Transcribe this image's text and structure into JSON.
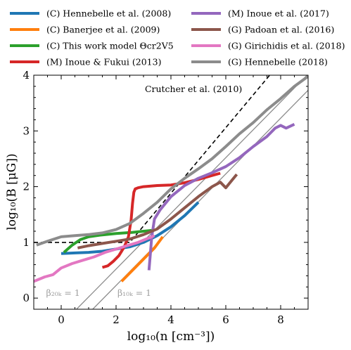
{
  "chart_data": {
    "type": "line",
    "xlabel": "log₁₀(n [cm⁻³])",
    "ylabel": "log₁₀(B [μG])",
    "xlim": [
      -1.0,
      9.0
    ],
    "ylim": [
      -0.2,
      4.0
    ],
    "xticks": [
      "0",
      "2",
      "4",
      "6",
      "8"
    ],
    "yticks": [
      "0",
      "1",
      "2",
      "3",
      "4"
    ],
    "grid": false,
    "legend_position": "top",
    "annotations": [
      {
        "text": "Crutcher et al. (2010)",
        "x": 3.05,
        "y": 3.7,
        "color": "#000000"
      },
      {
        "text": "β₂₀ₖ = 1",
        "x": -0.55,
        "y": 0.04,
        "color": "#a0a0a0"
      },
      {
        "text": "β₁₀ₖ = 1",
        "x": 2.05,
        "y": 0.04,
        "color": "#a0a0a0"
      }
    ],
    "reference_lines": [
      {
        "kind": "crutcher",
        "style": "dashed",
        "color": "#000000",
        "points": [
          [
            -1.0,
            1.0
          ],
          [
            2.5,
            1.0
          ],
          [
            7.6,
            4.0
          ]
        ]
      },
      {
        "kind": "beta20K",
        "style": "solid",
        "color": "#8c8c8c",
        "points": [
          [
            0.56,
            -0.2
          ],
          [
            9.0,
            4.02
          ]
        ]
      },
      {
        "kind": "beta10K",
        "style": "solid",
        "color": "#8c8c8c",
        "points": [
          [
            1.15,
            -0.2
          ],
          [
            9.0,
            3.73
          ]
        ]
      }
    ],
    "series": [
      {
        "name": "(C) Hennebelle et al. (2008)",
        "color": "#1f77b4",
        "x": [
          0.0,
          0.5,
          1.0,
          1.5,
          2.0,
          2.5,
          3.0,
          3.5,
          4.0,
          4.5,
          5.0
        ],
        "y": [
          0.8,
          0.81,
          0.82,
          0.84,
          0.88,
          0.92,
          1.0,
          1.12,
          1.28,
          1.48,
          1.72
        ]
      },
      {
        "name": "(C) Banerjee et al. (2009)",
        "color": "#ff7f0e",
        "x": [
          2.2,
          2.5,
          2.8,
          3.1,
          3.4,
          3.7
        ],
        "y": [
          0.3,
          0.45,
          0.6,
          0.75,
          0.9,
          1.1
        ]
      },
      {
        "name": "(C) This work model Θcr2V5",
        "color": "#2ca02c",
        "x": [
          0.1,
          0.4,
          0.7,
          1.0,
          1.4,
          2.0,
          2.6,
          3.0,
          3.2,
          3.4
        ],
        "y": [
          0.82,
          0.95,
          1.05,
          1.1,
          1.13,
          1.16,
          1.18,
          1.2,
          1.21,
          1.22
        ]
      },
      {
        "name": "(M) Inoue & Fukui (2013)",
        "color": "#d62728",
        "x": [
          1.5,
          1.7,
          1.9,
          2.1,
          2.3,
          2.45,
          2.55,
          2.6,
          2.65,
          2.7,
          2.8,
          3.0,
          3.5,
          4.0,
          4.5,
          5.0,
          5.5,
          5.8
        ],
        "y": [
          0.55,
          0.58,
          0.66,
          0.76,
          0.92,
          1.1,
          1.4,
          1.7,
          1.9,
          1.96,
          1.98,
          2.0,
          2.02,
          2.03,
          2.07,
          2.13,
          2.2,
          2.24
        ]
      },
      {
        "name": "(M) Inoue et al. (2017)",
        "color": "#9467bd",
        "x": [
          3.2,
          3.25,
          3.3,
          3.4,
          3.6,
          4.0,
          4.5,
          5.0,
          5.5,
          6.0,
          6.5,
          7.0,
          7.5,
          7.8,
          8.0,
          8.2,
          8.5
        ],
        "y": [
          0.5,
          0.8,
          1.1,
          1.42,
          1.58,
          1.82,
          2.02,
          2.15,
          2.25,
          2.36,
          2.52,
          2.72,
          2.9,
          3.05,
          3.1,
          3.05,
          3.12
        ]
      },
      {
        "name": "(G) Padoan et al. (2016)",
        "color": "#8c564b",
        "x": [
          0.6,
          1.0,
          1.5,
          2.0,
          2.5,
          3.0,
          3.5,
          4.0,
          4.5,
          5.0,
          5.5,
          5.8,
          6.0,
          6.2,
          6.4
        ],
        "y": [
          0.9,
          0.94,
          0.98,
          1.02,
          1.06,
          1.14,
          1.24,
          1.42,
          1.62,
          1.82,
          2.0,
          2.08,
          1.98,
          2.1,
          2.22
        ]
      },
      {
        "name": "(G) Girichidis et al. (2018)",
        "color": "#e377c2",
        "x": [
          -1.0,
          -0.6,
          -0.3,
          0.0,
          0.4,
          0.8,
          1.2,
          1.6,
          2.0,
          2.4,
          2.8,
          3.2,
          3.4
        ],
        "y": [
          0.3,
          0.38,
          0.42,
          0.54,
          0.62,
          0.68,
          0.74,
          0.82,
          0.88,
          0.94,
          1.0,
          1.08,
          1.12
        ]
      },
      {
        "name": "(G) Hennebelle (2018)",
        "color": "#8c8c8c",
        "x": [
          -0.9,
          -0.5,
          0.0,
          0.5,
          1.0,
          1.5,
          2.0,
          2.5,
          3.0,
          3.5,
          4.0,
          4.5,
          5.0,
          5.5,
          6.0,
          6.5,
          7.0,
          7.5,
          8.0,
          8.5,
          9.0
        ],
        "y": [
          0.95,
          1.02,
          1.1,
          1.12,
          1.14,
          1.17,
          1.23,
          1.34,
          1.52,
          1.72,
          1.96,
          2.15,
          2.32,
          2.5,
          2.72,
          2.95,
          3.15,
          3.38,
          3.58,
          3.8,
          3.98
        ]
      }
    ]
  }
}
